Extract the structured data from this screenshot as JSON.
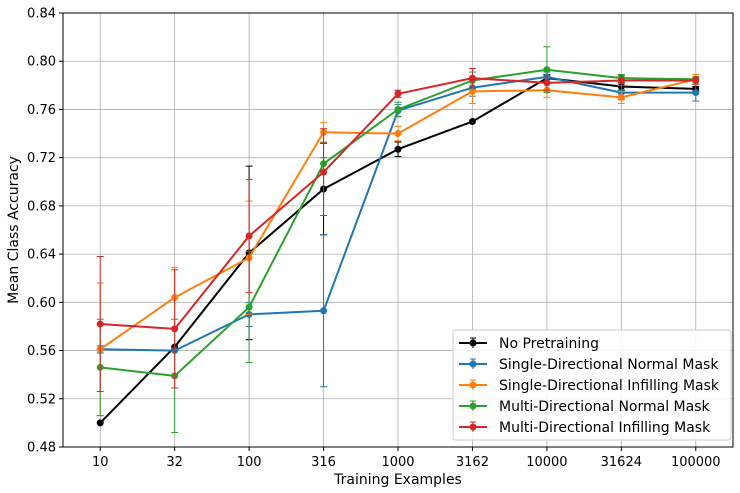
{
  "chart_data": {
    "type": "line",
    "xlabel": "Training Examples",
    "ylabel": "Mean Class Accuracy",
    "categories": [
      "10",
      "32",
      "100",
      "316",
      "1000",
      "3162",
      "10000",
      "31624",
      "100000"
    ],
    "ylim": [
      0.48,
      0.84
    ],
    "yticks": [
      "0.48",
      "0.52",
      "0.56",
      "0.60",
      "0.64",
      "0.68",
      "0.72",
      "0.76",
      "0.80",
      "0.84"
    ],
    "grid": true,
    "legend_position": "lower-right",
    "series": [
      {
        "name": "No Pretraining",
        "color": "#000000",
        "values": [
          0.5,
          0.563,
          0.641,
          0.694,
          0.727,
          0.75,
          0.786,
          0.779,
          0.777
        ],
        "errors": [
          0.0,
          0.0,
          0.072,
          0.038,
          0.006,
          0.0,
          0.003,
          0.003,
          0.002
        ]
      },
      {
        "name": "Single-Directional Normal Mask",
        "color": "#1f77b4",
        "values": [
          0.561,
          0.56,
          0.59,
          0.593,
          0.759,
          0.778,
          0.787,
          0.774,
          0.774
        ],
        "errors": [
          0.003,
          0.0,
          0.01,
          0.063,
          0.005,
          0.007,
          0.004,
          0.006,
          0.007
        ]
      },
      {
        "name": "Single-Directional Infilling Mask",
        "color": "#ff7f0e",
        "values": [
          0.561,
          0.604,
          0.637,
          0.741,
          0.74,
          0.775,
          0.776,
          0.77,
          0.785
        ],
        "errors": [
          0.055,
          0.025,
          0.047,
          0.008,
          0.006,
          0.01,
          0.006,
          0.005,
          0.004
        ]
      },
      {
        "name": "Multi-Directional Normal Mask",
        "color": "#2ca02c",
        "values": [
          0.546,
          0.539,
          0.596,
          0.715,
          0.76,
          0.784,
          0.793,
          0.786,
          0.785
        ],
        "errors": [
          0.04,
          0.047,
          0.046,
          0.005,
          0.006,
          0.007,
          0.019,
          0.003,
          0.002
        ]
      },
      {
        "name": "Multi-Directional Infilling Mask",
        "color": "#d62728",
        "values": [
          0.582,
          0.578,
          0.655,
          0.708,
          0.773,
          0.786,
          0.782,
          0.784,
          0.784
        ],
        "errors": [
          0.056,
          0.049,
          0.047,
          0.036,
          0.003,
          0.008,
          0.006,
          0.004,
          0.003
        ]
      }
    ]
  }
}
